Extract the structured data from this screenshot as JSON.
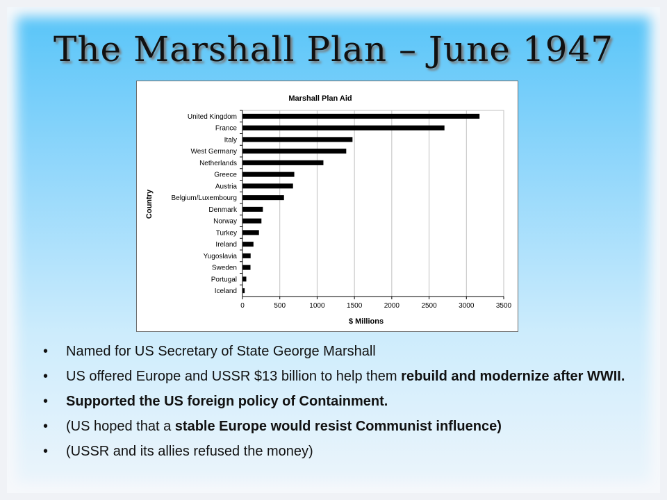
{
  "slide": {
    "title": "The Marshall Plan – June 1947",
    "bullet_symbol": "•",
    "bullets": [
      [
        {
          "text": "Named for US Secretary of State George Marshall",
          "bold": false
        }
      ],
      [
        {
          "text": "US offered Europe and USSR $13 billion to help them ",
          "bold": false
        },
        {
          "text": "rebuild and modernize after WWII.",
          "bold": true
        }
      ],
      [
        {
          "text": "Supported the US foreign policy of Containment.",
          "bold": true
        }
      ],
      [
        {
          "text": "(US hoped that a ",
          "bold": false
        },
        {
          "text": "stable Europe would resist Communist influence)",
          "bold": true
        }
      ],
      [
        {
          "text": "(USSR and its allies refused the money)",
          "bold": false
        }
      ]
    ]
  },
  "chart_data": {
    "type": "bar",
    "orientation": "horizontal",
    "title": "Marshall Plan Aid",
    "xlabel": "$ Millions",
    "ylabel": "Country",
    "categories": [
      "United Kingdom",
      "France",
      "Italy",
      "West Germany",
      "Netherlands",
      "Greece",
      "Austria",
      "Belgium/Luxembourg",
      "Denmark",
      "Norway",
      "Turkey",
      "Ireland",
      "Yugoslavia",
      "Sweden",
      "Portugal",
      "Iceland"
    ],
    "values": [
      3176,
      2706,
      1474,
      1390,
      1084,
      694,
      677,
      556,
      273,
      254,
      221,
      147,
      109,
      107,
      51,
      29
    ],
    "xlim": [
      0,
      3500
    ],
    "xticks": [
      0,
      500,
      1000,
      1500,
      2000,
      2500,
      3000,
      3500
    ],
    "grid": true,
    "bar_color": "#000000",
    "grid_color": "#c0c0c0"
  }
}
